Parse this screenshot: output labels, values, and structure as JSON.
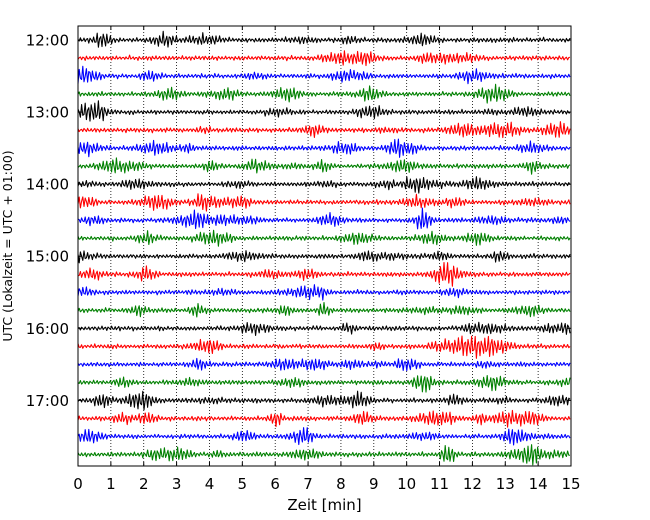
{
  "chart_data": {
    "type": "line",
    "title": "",
    "xlabel": "Zeit  [min]",
    "ylabel": "UTC (Lokalzeit = UTC + 01:00)",
    "xlim": [
      0,
      15
    ],
    "x_ticks": [
      0,
      1,
      2,
      3,
      4,
      5,
      6,
      7,
      8,
      9,
      10,
      11,
      12,
      13,
      14,
      15
    ],
    "x_tick_labels": [
      "0",
      "1",
      "2",
      "3",
      "4",
      "5",
      "6",
      "7",
      "8",
      "9",
      "10",
      "11",
      "12",
      "13",
      "14",
      "15"
    ],
    "y_tick_labels": [
      "12:00",
      "13:00",
      "14:00",
      "15:00",
      "16:00",
      "17:00"
    ],
    "grid": "vertical-dotted",
    "trace_colors": [
      "#000000",
      "#ff0000",
      "#0000ff",
      "#008000"
    ],
    "traces": [
      {
        "start": "12:00"
      },
      {
        "start": "12:15"
      },
      {
        "start": "12:30"
      },
      {
        "start": "12:45"
      },
      {
        "start": "13:00"
      },
      {
        "start": "13:15"
      },
      {
        "start": "13:30"
      },
      {
        "start": "13:45"
      },
      {
        "start": "14:00"
      },
      {
        "start": "14:15"
      },
      {
        "start": "14:30"
      },
      {
        "start": "14:45"
      },
      {
        "start": "15:00"
      },
      {
        "start": "15:15"
      },
      {
        "start": "15:30"
      },
      {
        "start": "15:45"
      },
      {
        "start": "16:00"
      },
      {
        "start": "16:15"
      },
      {
        "start": "16:30"
      },
      {
        "start": "16:45"
      },
      {
        "start": "17:00"
      },
      {
        "start": "17:15"
      },
      {
        "start": "17:30"
      },
      {
        "start": "17:45"
      }
    ]
  }
}
